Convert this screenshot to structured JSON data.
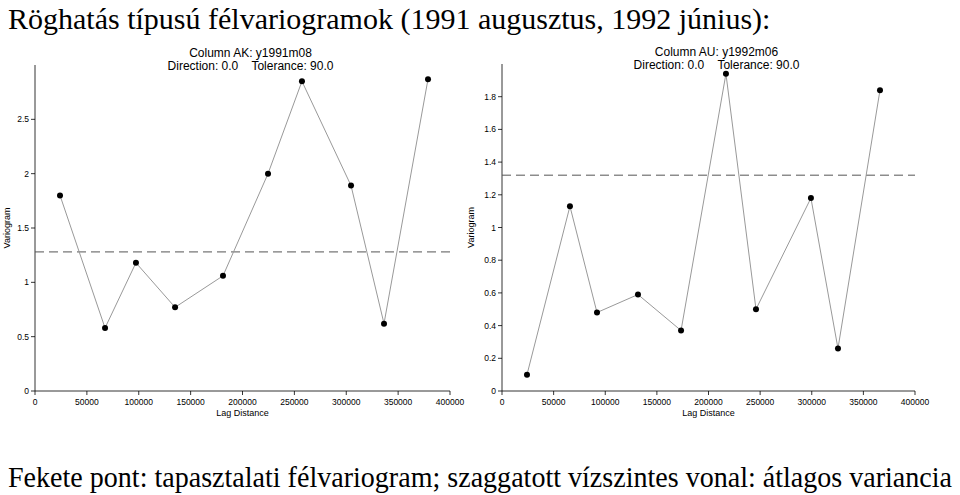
{
  "heading": "Röghatás típusú félvariogramok (1991 augusztus, 1992 június):",
  "caption": "Fekete pont: tapasztalati félvariogram; szaggatott vízszintes vonal: átlagos variancia",
  "chart_data": [
    {
      "type": "line",
      "title": "Column AK: y1991m08",
      "subtitle": "Direction: 0.0    Tolerance: 90.0",
      "x_label": "Lag Distance",
      "y_label": "Variogram",
      "x": [
        24100,
        67500,
        97300,
        135000,
        181200,
        224600,
        257300,
        304600,
        336400,
        378800
      ],
      "series": [
        {
          "color": "#999999",
          "marker": "circle",
          "line_style": "solid",
          "values": [
            1.8,
            0.58,
            1.18,
            0.77,
            1.06,
            2.0,
            2.85,
            1.89,
            0.62,
            2.87
          ]
        }
      ],
      "mean_variance": 1.28,
      "xlim": [
        0,
        400000
      ],
      "xticks": [
        0,
        50000,
        100000,
        150000,
        200000,
        250000,
        300000,
        350000,
        400000
      ],
      "ylim": [
        0,
        3
      ],
      "yticks": [
        0,
        0.5,
        1,
        1.5,
        2,
        2.5
      ],
      "grid": false
    },
    {
      "type": "line",
      "title": "Column AU: y1992m06",
      "subtitle": "Direction: 0.0    Tolerance: 90.0",
      "x_label": "Lag Distance",
      "y_label": "Variogram",
      "x": [
        24200,
        65800,
        92000,
        131700,
        173400,
        216900,
        246000,
        299200,
        325400,
        366100
      ],
      "series": [
        {
          "color": "#999999",
          "marker": "circle",
          "line_style": "solid",
          "values": [
            0.1,
            1.13,
            0.48,
            0.59,
            0.37,
            1.94,
            0.5,
            1.18,
            0.26,
            1.84
          ]
        }
      ],
      "mean_variance": 1.32,
      "xlim": [
        0,
        400000
      ],
      "xticks": [
        0,
        50000,
        100000,
        150000,
        200000,
        250000,
        300000,
        350000,
        400000
      ],
      "ylim": [
        0,
        2
      ],
      "yticks": [
        0,
        0.2,
        0.4,
        0.6,
        0.8,
        1,
        1.2,
        1.4,
        1.6,
        1.8
      ],
      "grid": false
    }
  ]
}
